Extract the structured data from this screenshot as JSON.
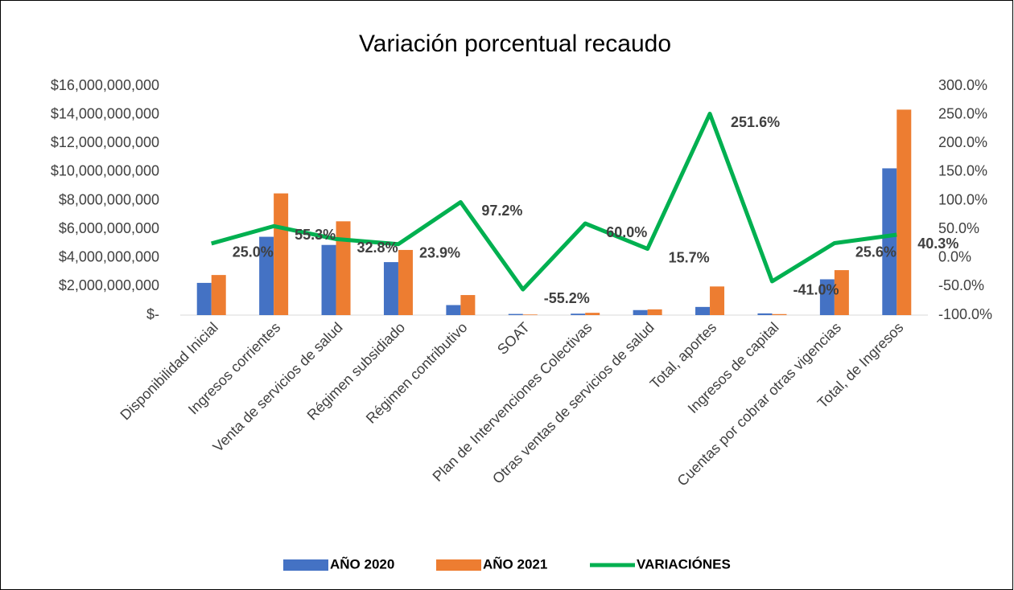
{
  "chart_data": {
    "type": "bar_line",
    "title": "Variación porcentual  recaudo",
    "categories": [
      "Disponibilidad Inicial",
      "Ingresos corrientes",
      "Venta de servicios de salud",
      "Régimen subsidiado",
      "Régimen contributivo",
      "SOAT",
      "Plan de Intervenciones Colectivas",
      "Otras ventas de servicios de salud",
      "Total, aportes",
      "Ingresos de capital",
      "Cuentas por cobrar otras vigencias",
      "Total, de Ingresos"
    ],
    "series": [
      {
        "name": "AÑO 2020",
        "color": "#4472c4",
        "type": "bar",
        "values": [
          2250000000,
          5470000000,
          4900000000,
          3700000000,
          700000000,
          80000000,
          100000000,
          350000000,
          570000000,
          120000000,
          2500000000,
          10250000000
        ]
      },
      {
        "name": "AÑO 2021",
        "color": "#ed7d31",
        "type": "bar",
        "values": [
          2800000000,
          8500000000,
          6550000000,
          4550000000,
          1400000000,
          40000000,
          160000000,
          400000000,
          2000000000,
          70000000,
          3140000000,
          14350000000
        ]
      },
      {
        "name": "VARIACIÓNES",
        "color": "#00b050",
        "type": "line",
        "axis": "y2",
        "values": [
          25.0,
          55.3,
          32.8,
          23.9,
          97.2,
          -55.2,
          60.0,
          15.7,
          251.6,
          -41.0,
          25.6,
          40.3
        ],
        "value_labels": [
          "25.0%",
          "55.3%",
          "32.8%",
          "23.9%",
          "97.2%",
          "-55.2%",
          "60.0%",
          "15.7%",
          "251.6%",
          "-41.0%",
          "25.6%",
          "40.3%"
        ]
      }
    ],
    "ylim": [
      0,
      16000000000
    ],
    "yticks": [
      {
        "value": 0,
        "label": "$-"
      },
      {
        "value": 2000000000,
        "label": "$2,000,000,000"
      },
      {
        "value": 4000000000,
        "label": "$4,000,000,000"
      },
      {
        "value": 6000000000,
        "label": "$6,000,000,000"
      },
      {
        "value": 8000000000,
        "label": "$8,000,000,000"
      },
      {
        "value": 10000000000,
        "label": "$10,000,000,000"
      },
      {
        "value": 12000000000,
        "label": "$12,000,000,000"
      },
      {
        "value": 14000000000,
        "label": "$14,000,000,000"
      },
      {
        "value": 16000000000,
        "label": "$16,000,000,000"
      }
    ],
    "y2lim": [
      -100,
      300
    ],
    "y2ticks": [
      {
        "value": -100,
        "label": "-100.0%"
      },
      {
        "value": -50,
        "label": "-50.0%"
      },
      {
        "value": 0,
        "label": "0.0%"
      },
      {
        "value": 50,
        "label": "50.0%"
      },
      {
        "value": 100,
        "label": "100.0%"
      },
      {
        "value": 150,
        "label": "150.0%"
      },
      {
        "value": 200,
        "label": "200.0%"
      },
      {
        "value": 250,
        "label": "250.0%"
      },
      {
        "value": 300,
        "label": "300.0%"
      }
    ],
    "grid": false,
    "legend": "bottom"
  }
}
